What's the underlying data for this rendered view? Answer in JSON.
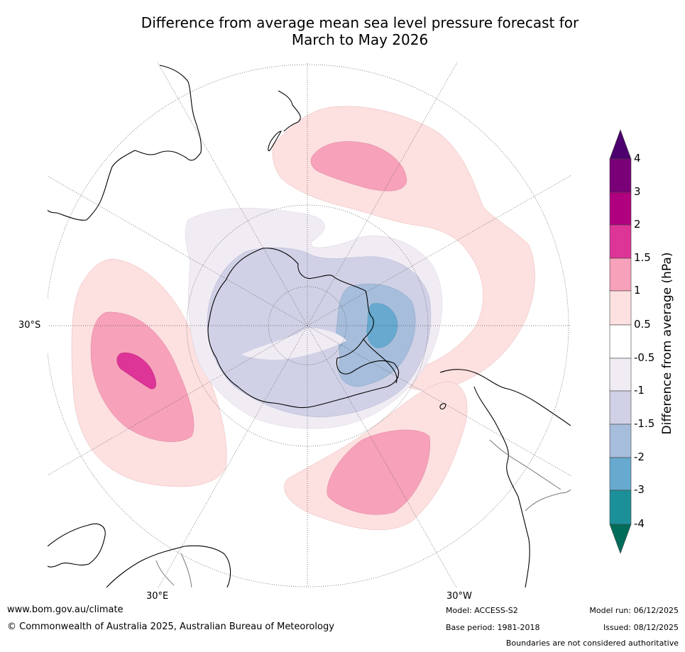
{
  "title": {
    "line1": "Difference from average mean sea level pressure forecast for",
    "line2": "March to May 2026"
  },
  "map": {
    "projection": "south polar stereographic",
    "labels": {
      "lat_30s": "30°S",
      "lon_30e": "30°E",
      "lon_30w": "30°W"
    }
  },
  "colorbar": {
    "label": "Difference from average (hPa)",
    "ticks": [
      "4",
      "3",
      "2",
      "1.5",
      "1",
      "0.5",
      "-0.5",
      "-1",
      "-1.5",
      "-2",
      "-3",
      "-4"
    ],
    "colors": {
      "above_4": "#4b006e",
      "3_to_4": "#7a0077",
      "2_to_3": "#b0007f",
      "1.5_to_2": "#dd3497",
      "1_to_1.5": "#f7a1ba",
      "0.5_to_1": "#fde0e0",
      "neutral": "#ffffff",
      "-1_to_-0.5": "#f1ecf4",
      "-1.5_to_-1": "#d0d1e6",
      "-2_to_-1.5": "#a6bddb",
      "-3_to_-2": "#67a9cf",
      "-4_to_-3": "#1c9099",
      "below_-4": "#016c59"
    }
  },
  "footer": {
    "website": "www.bom.gov.au/climate",
    "copyright": "© Commonwealth of Australia 2025, Australian Bureau of Meteorology",
    "model": "Model: ACCESS-S2",
    "base_period": "Base period: 1981-2018",
    "model_run": "Model run: 06/12/2025",
    "issued": "Issued: 08/12/2025",
    "disclaimer": "Boundaries are not considered authoritative"
  }
}
